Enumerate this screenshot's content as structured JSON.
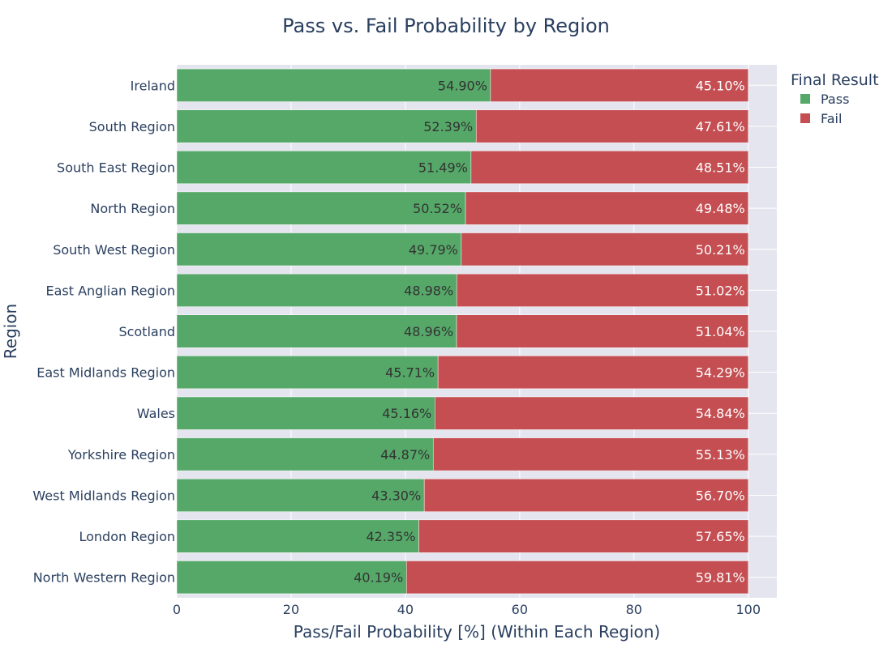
{
  "chart_data": {
    "type": "bar",
    "orientation": "horizontal",
    "barmode": "stack",
    "title": "Pass vs. Fail Probability by Region",
    "xlabel": "Pass/Fail Probability [%] (Within Each Region)",
    "ylabel": "Region",
    "xlim": [
      0,
      105
    ],
    "xticks": [
      0,
      20,
      40,
      60,
      80,
      100
    ],
    "grid": true,
    "legend": {
      "title": "Final Result",
      "placement": "top-right"
    },
    "categories": [
      "Ireland",
      "South Region",
      "South East Region",
      "North Region",
      "South West Region",
      "East Anglian Region",
      "Scotland",
      "East Midlands Region",
      "Wales",
      "Yorkshire Region",
      "West Midlands Region",
      "London Region",
      "North Western Region"
    ],
    "series": [
      {
        "name": "Pass",
        "color": "#55a868",
        "label_color": "#333333",
        "values": [
          54.9,
          52.39,
          51.49,
          50.52,
          49.79,
          48.98,
          48.96,
          45.71,
          45.16,
          44.87,
          43.3,
          42.35,
          40.19
        ],
        "labels": [
          "54.90%",
          "52.39%",
          "51.49%",
          "50.52%",
          "49.79%",
          "48.98%",
          "48.96%",
          "45.71%",
          "45.16%",
          "44.87%",
          "43.30%",
          "42.35%",
          "40.19%"
        ]
      },
      {
        "name": "Fail",
        "color": "#c44e52",
        "label_color": "#ffffff",
        "values": [
          45.1,
          47.61,
          48.51,
          49.48,
          50.21,
          51.02,
          51.04,
          54.29,
          54.84,
          55.13,
          56.7,
          57.65,
          59.81
        ],
        "labels": [
          "45.10%",
          "47.61%",
          "48.51%",
          "49.48%",
          "50.21%",
          "51.02%",
          "51.04%",
          "54.29%",
          "54.84%",
          "55.13%",
          "56.70%",
          "57.65%",
          "59.81%"
        ]
      }
    ]
  },
  "colors": {
    "plot_background": "#e5e5ef",
    "grid": "#ffffff",
    "text": "#2a3f5f"
  }
}
